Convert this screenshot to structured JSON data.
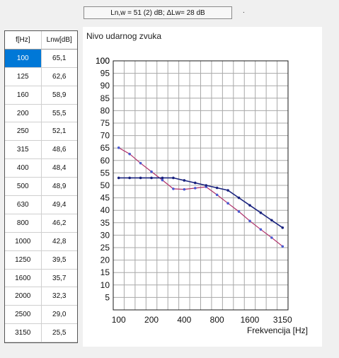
{
  "result": {
    "text": "Ln,w = 51 (2) dB; ΔLw= 28 dB",
    "dot": "."
  },
  "table": {
    "headers": [
      "f[Hz]",
      "Lnw[dB]"
    ],
    "selected_index": 0,
    "rows": [
      {
        "f": "100",
        "lnw": "65,1"
      },
      {
        "f": "125",
        "lnw": "62,6"
      },
      {
        "f": "160",
        "lnw": "58,9"
      },
      {
        "f": "200",
        "lnw": "55,5"
      },
      {
        "f": "250",
        "lnw": "52,1"
      },
      {
        "f": "315",
        "lnw": "48,6"
      },
      {
        "f": "400",
        "lnw": "48,4"
      },
      {
        "f": "500",
        "lnw": "48,9"
      },
      {
        "f": "630",
        "lnw": "49,4"
      },
      {
        "f": "800",
        "lnw": "46,2"
      },
      {
        "f": "1000",
        "lnw": "42,8"
      },
      {
        "f": "1250",
        "lnw": "39,5"
      },
      {
        "f": "1600",
        "lnw": "35,7"
      },
      {
        "f": "2000",
        "lnw": "32,3"
      },
      {
        "f": "2500",
        "lnw": "29,0"
      },
      {
        "f": "3150",
        "lnw": "25,5"
      }
    ]
  },
  "chart_data": {
    "type": "line",
    "title": "Nivo udarnog zvuka",
    "xlabel": "Frekvencija [Hz]",
    "ylabel": "",
    "x": [
      100,
      125,
      160,
      200,
      250,
      315,
      400,
      500,
      630,
      800,
      1000,
      1250,
      1600,
      2000,
      2500,
      3150
    ],
    "x_tick_labels": [
      "100",
      "200",
      "400",
      "800",
      "1600",
      "3150"
    ],
    "y_ticks": [
      5,
      10,
      15,
      20,
      25,
      30,
      35,
      40,
      45,
      50,
      55,
      60,
      65,
      70,
      75,
      80,
      85,
      90,
      95,
      100
    ],
    "ylim": [
      0,
      100
    ],
    "grid": true,
    "series": [
      {
        "color": "#b0306a",
        "values": [
          65.1,
          62.6,
          58.9,
          55.5,
          52.1,
          48.6,
          48.4,
          48.9,
          49.4,
          46.2,
          42.8,
          39.5,
          35.7,
          32.3,
          29.0,
          25.5
        ]
      },
      {
        "color": "#1a237e",
        "values": [
          53,
          53,
          53,
          53,
          53,
          53,
          52,
          51,
          50,
          49,
          48,
          45,
          42,
          39,
          36,
          33
        ]
      }
    ]
  }
}
